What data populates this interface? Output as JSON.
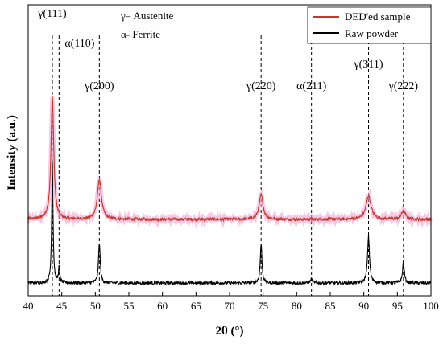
{
  "chart_data": {
    "type": "line",
    "title": "",
    "xlabel": "2θ (°)",
    "ylabel": "Intensity (a.u.)",
    "xlim": [
      40,
      100
    ],
    "xticks": [
      40,
      45,
      50,
      55,
      60,
      65,
      70,
      75,
      80,
      85,
      90,
      95,
      100
    ],
    "y_ticks_shown": false,
    "grid": false,
    "legend": {
      "position": "top-right",
      "entries": [
        {
          "label": "DED'ed sample",
          "color": "#c0392b"
        },
        {
          "label": "Raw powder",
          "color": "#000000"
        }
      ]
    },
    "phase_legend": [
      "γ– Austenite",
      "α- Ferrite"
    ],
    "reference_lines": [
      43.6,
      44.6,
      50.6,
      74.7,
      82.2,
      90.7,
      95.9
    ],
    "peak_labels": [
      {
        "text": "γ(111)",
        "x": 43.6
      },
      {
        "text": "α(110)",
        "x": 44.6
      },
      {
        "text": "γ(200)",
        "x": 50.6
      },
      {
        "text": "γ(220)",
        "x": 74.7
      },
      {
        "text": "α(211)",
        "x": 82.2
      },
      {
        "text": "γ(311)",
        "x": 90.7
      },
      {
        "text": "γ(222)",
        "x": 95.9
      }
    ],
    "series": [
      {
        "name": "DED'ed sample",
        "color": "#c0392b",
        "baseline": 0.52,
        "peaks": [
          {
            "x": 43.6,
            "height": 1.0,
            "width": 0.25
          },
          {
            "x": 50.6,
            "height": 0.33,
            "width": 0.35
          },
          {
            "x": 74.7,
            "height": 0.2,
            "width": 0.35
          },
          {
            "x": 90.7,
            "height": 0.19,
            "width": 0.45
          },
          {
            "x": 95.9,
            "height": 0.07,
            "width": 0.35
          }
        ]
      },
      {
        "name": "Raw powder",
        "color": "#000000",
        "baseline": 0.0,
        "peaks": [
          {
            "x": 43.6,
            "height": 0.99,
            "width": 0.12
          },
          {
            "x": 44.6,
            "height": 0.12,
            "width": 0.12
          },
          {
            "x": 50.6,
            "height": 0.33,
            "width": 0.15
          },
          {
            "x": 74.7,
            "height": 0.32,
            "width": 0.15
          },
          {
            "x": 82.2,
            "height": 0.03,
            "width": 0.2
          },
          {
            "x": 90.7,
            "height": 0.38,
            "width": 0.18
          },
          {
            "x": 95.9,
            "height": 0.18,
            "width": 0.15
          }
        ]
      }
    ]
  }
}
